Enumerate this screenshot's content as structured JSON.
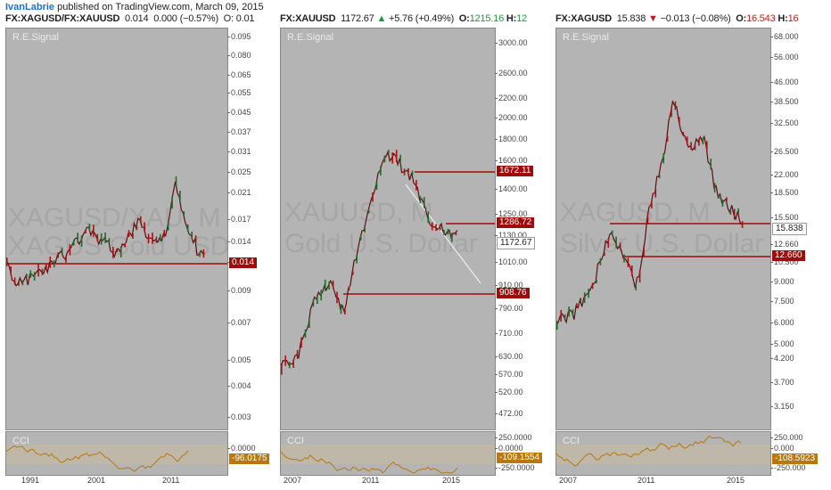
{
  "header": {
    "author": "IvanLabrie",
    "text": " published on TradingView.com, March 09, 2015"
  },
  "indicator_label": "R.E.Signal",
  "cci_label": "CCI",
  "panels": [
    {
      "title": {
        "symbol": "FX:XAGUSD/FX:XAUUSD",
        "price": "0.014",
        "change": "0.000 (−0.57%)",
        "extra": "O: 0.01"
      },
      "watermark1": "XAGUSD/XAU. M",
      "watermark2": "XAGUS Gold USD",
      "axis": [
        "0.095",
        "0.080",
        "0.065",
        "0.055",
        "0.045",
        "0.037",
        "0.031",
        "0.025",
        "0.021",
        "0.017",
        "0.014",
        "0.011",
        "0.009",
        "0.007",
        "0.005",
        "0.004",
        "0.003"
      ],
      "tags": [
        {
          "text": "0.014",
          "style": "red"
        }
      ],
      "cci_axis": [
        "0.0000"
      ],
      "cci_tag": "-96.0175",
      "xlabels": [
        "1991",
        "2001",
        "2011"
      ]
    },
    {
      "title": {
        "symbol": "FX:XAUUSD",
        "price": "1172.67",
        "change": "+5.76 (+0.49%)",
        "o_label": "O:",
        "o": "1215.16",
        "h_label": "H:",
        "h": "12"
      },
      "watermark1": "XAUUSD, M",
      "watermark2": "Gold U.S. Dollar",
      "axis": [
        "3000.00",
        "2600.00",
        "2200.00",
        "2000.00",
        "1800.00",
        "1600.00",
        "1400.00",
        "1250.00",
        "1130.00",
        "1010.00",
        "910.00",
        "790.00",
        "710.00",
        "630.00",
        "570.00",
        "520.00",
        "472.00"
      ],
      "tags": [
        {
          "text": "1672.11",
          "style": "red"
        },
        {
          "text": "1286.72",
          "style": "red"
        },
        {
          "text": "1172.67",
          "style": "white"
        },
        {
          "text": "908.76",
          "style": "red"
        }
      ],
      "cci_axis": [
        "250.0000",
        "0.0000",
        "-250.0000"
      ],
      "cci_tag": "-109.1554",
      "xlabels": [
        "2007",
        "2011",
        "2015"
      ]
    },
    {
      "title": {
        "symbol": "FX:XAGUSD",
        "price": "15.838",
        "change": "−0.013 (−0.08%)",
        "o_label": "O:",
        "o": "16.543",
        "h_label": "H:",
        "h": "16"
      },
      "watermark1": "XAGUSD, M",
      "watermark2": "Silver U.S. Dollar",
      "axis": [
        "68.000",
        "56.000",
        "46.000",
        "38.500",
        "32.500",
        "26.500",
        "22.000",
        "18.500",
        "15.500",
        "12.660",
        "10.500",
        "9.000",
        "7.500",
        "6.000",
        "5.000",
        "4.200",
        "3.700",
        "3.150"
      ],
      "tags": [
        {
          "text": "15.838",
          "style": "white"
        },
        {
          "text": "12.660",
          "style": "red"
        }
      ],
      "cci_axis": [
        "250.000",
        "0.000",
        "-250.000"
      ],
      "cci_tag": "-108.5923",
      "xlabels": [
        "2007",
        "2011",
        "2015"
      ]
    }
  ],
  "colors": {
    "panel_bg": "#b4b4b4",
    "up": "#1f6b2a",
    "down": "#b01010",
    "level": "#9e0b0b",
    "cci_line": "#b8780c"
  }
}
